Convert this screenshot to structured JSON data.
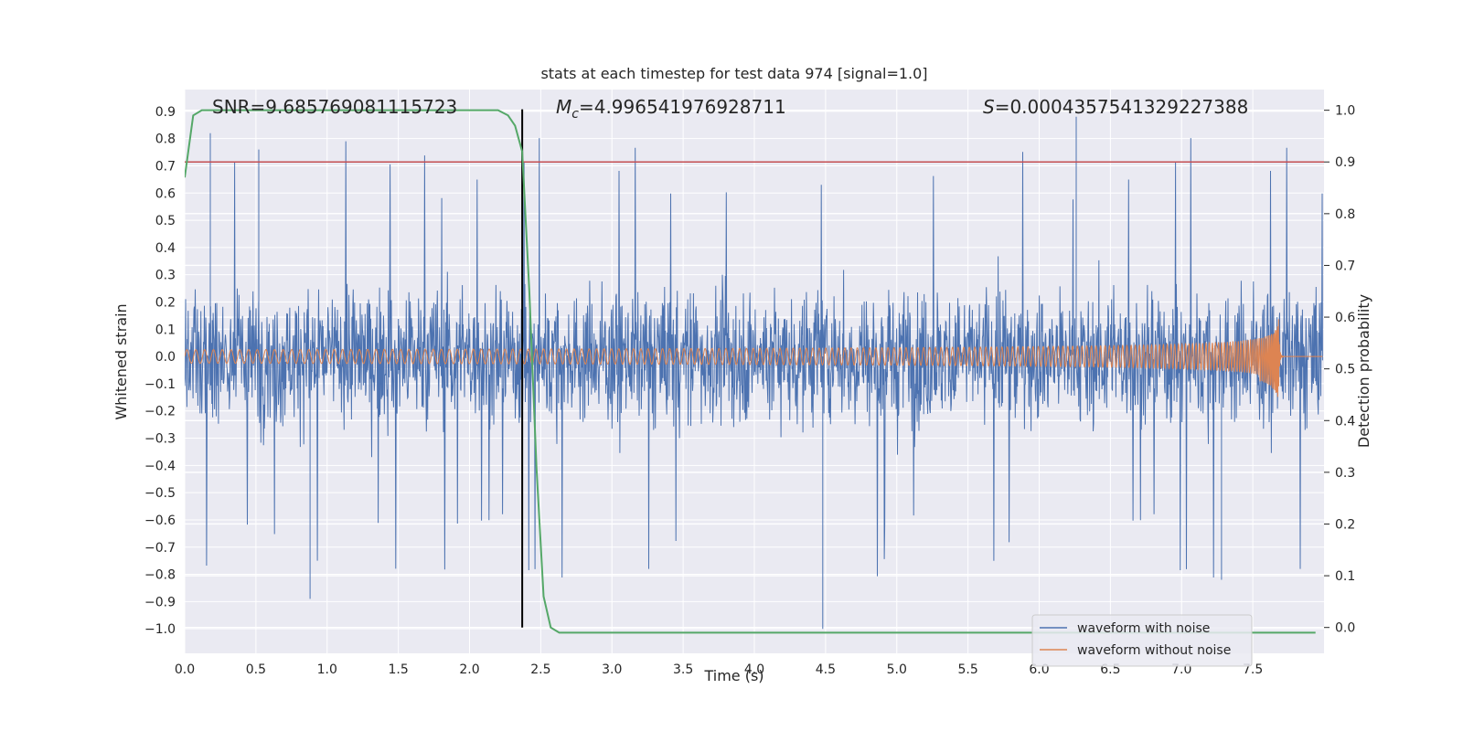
{
  "chart_data": {
    "type": "line",
    "title": "stats at each timestep for test data 974 [signal=1.0]",
    "xlabel": "Time (s)",
    "ylabel": "Whitened strain",
    "y2label": "Detection probability",
    "xlim": [
      0.0,
      8.0
    ],
    "ylim": [
      -1.09,
      0.98
    ],
    "y2lim": [
      -0.05,
      1.04
    ],
    "xticks": [
      0.0,
      0.5,
      1.0,
      1.5,
      2.0,
      2.5,
      3.0,
      3.5,
      4.0,
      4.5,
      5.0,
      5.5,
      6.0,
      6.5,
      7.0,
      7.5
    ],
    "xtick_labels": [
      "0.0",
      "0.5",
      "1.0",
      "1.5",
      "2.0",
      "2.5",
      "3.0",
      "3.5",
      "4.0",
      "4.5",
      "5.0",
      "5.5",
      "6.0",
      "6.5",
      "7.0",
      "7.5"
    ],
    "yticks": [
      -1.0,
      -0.9,
      -0.8,
      -0.7,
      -0.6,
      -0.5,
      -0.4,
      -0.3,
      -0.2,
      -0.1,
      0.0,
      0.1,
      0.2,
      0.3,
      0.4,
      0.5,
      0.6,
      0.7,
      0.8,
      0.9
    ],
    "ytick_labels": [
      "−1.0",
      "−0.9",
      "−0.8",
      "−0.7",
      "−0.6",
      "−0.5",
      "−0.4",
      "−0.3",
      "−0.2",
      "−0.1",
      "0.0",
      "0.1",
      "0.2",
      "0.3",
      "0.4",
      "0.5",
      "0.6",
      "0.7",
      "0.8",
      "0.9"
    ],
    "y2ticks": [
      0.0,
      0.1,
      0.2,
      0.3,
      0.4,
      0.5,
      0.6,
      0.7,
      0.8,
      0.9,
      1.0
    ],
    "y2tick_labels": [
      "0.0",
      "0.1",
      "0.2",
      "0.3",
      "0.4",
      "0.5",
      "0.6",
      "0.7",
      "0.8",
      "0.9",
      "1.0"
    ],
    "annotations": {
      "snr": "SNR=9.685769081115723",
      "mc_symbol": "M",
      "mc_sub": "c",
      "mc_value": "=4.996541976928711",
      "s_symbol": "S",
      "s_value": "=0.0004357541329227388"
    },
    "threshold_y2": 0.9,
    "marker_time": 2.37,
    "series": [
      {
        "name": "waveform with noise",
        "color": "#4c72b0",
        "description": "whitened noisy strain, roughly within -0.6..0.6 with spikes to 0.88 and -1.0",
        "band_low": -0.45,
        "band_high": 0.45,
        "spike_max": 0.88,
        "spike_min": -1.0
      },
      {
        "name": "waveform without noise",
        "color": "#dd8452",
        "description": "chirp: amplitude grows from 0.025 to 0.17 peaking near t=7.68, then ringdown",
        "amp_start": 0.025,
        "amp_peak_pos": 0.17,
        "amp_peak_neg": -0.23,
        "merger_time": 7.68
      },
      {
        "name": "detection probability",
        "color": "#55a868",
        "axis": "right",
        "x": [
          0.0,
          0.06,
          0.12,
          0.25,
          0.5,
          1.0,
          1.5,
          2.0,
          2.1,
          2.2,
          2.27,
          2.32,
          2.37,
          2.42,
          2.47,
          2.52,
          2.57,
          2.63,
          2.7,
          3.0,
          4.0,
          5.0,
          6.0,
          7.0,
          7.94
        ],
        "y": [
          0.87,
          0.99,
          1.0,
          1.0,
          1.0,
          1.0,
          1.0,
          1.0,
          1.0,
          1.0,
          0.99,
          0.97,
          0.92,
          0.65,
          0.31,
          0.06,
          0.0,
          -0.01,
          -0.01,
          -0.01,
          -0.01,
          -0.01,
          -0.01,
          -0.01,
          -0.01
        ]
      }
    ],
    "legend": {
      "position": "lower-right",
      "entries": [
        "waveform with noise",
        "waveform without noise"
      ]
    },
    "colors": {
      "background": "#eaeaf2",
      "grid": "#ffffff",
      "threshold": "#c44e52",
      "marker": "#000000"
    }
  }
}
